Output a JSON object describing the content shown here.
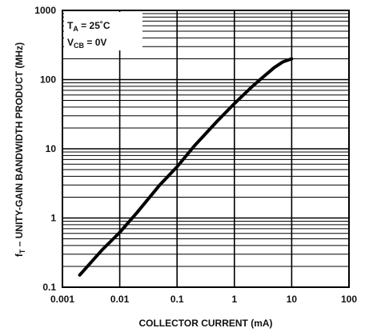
{
  "chart_data": {
    "type": "line",
    "x_scale": "log",
    "y_scale": "log",
    "xlim": [
      0.001,
      100
    ],
    "ylim": [
      0.1,
      1000
    ],
    "xlabel": "COLLECTOR CURRENT (mA)",
    "ylabel": "fₜ – UNITY-GAIN BANDWIDTH PRODUCT (MHz)",
    "ylabel_main": "f",
    "ylabel_sub": "T",
    "ylabel_rest": " – UNITY-GAIN BANDWIDTH PRODUCT (MHz)",
    "x_tick_labels": [
      "0.001",
      "0.01",
      "0.1",
      "1",
      "10",
      "100"
    ],
    "y_tick_labels": [
      "1000",
      "100",
      "10",
      "1",
      "0.1"
    ],
    "x_ticks": [
      0.001,
      0.01,
      0.1,
      1,
      10,
      100
    ],
    "y_ticks": [
      1000,
      100,
      10,
      1,
      0.1
    ],
    "grid": true,
    "annotations": {
      "ta_main": "T",
      "ta_sub": "A",
      "ta_value": " = 25˚C",
      "vcb_main": "V",
      "vcb_sub": "CB",
      "vcb_value": " = 0V"
    },
    "series": [
      {
        "x": [
          0.002,
          0.005,
          0.01,
          0.02,
          0.05,
          0.1,
          0.2,
          0.5,
          1,
          2,
          3,
          5,
          7,
          10
        ],
        "y": [
          0.15,
          0.35,
          0.62,
          1.2,
          3.0,
          5.5,
          11,
          25,
          45,
          78,
          105,
          150,
          180,
          200
        ]
      }
    ],
    "line_color": "#000000",
    "grid_color": "#000000",
    "background": "#ffffff"
  }
}
